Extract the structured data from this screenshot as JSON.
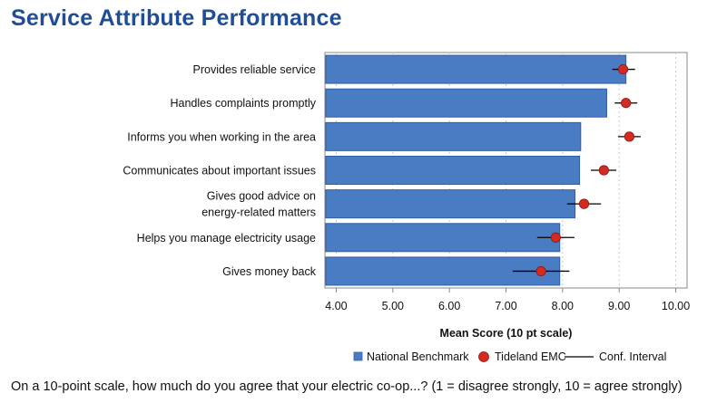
{
  "page": {
    "title": "Service Attribute Performance",
    "footer": "On a 10-point scale, how much do you agree that your electric co-op...? (1 = disagree strongly, 10 = agree strongly)"
  },
  "colors": {
    "title": "#1f4e96",
    "bar": "#4a7cc4",
    "bar_stroke": "#2f5ea8",
    "point": "#d42a1f",
    "point_stroke": "#8a1a12",
    "ci": "#000000",
    "grid": "#c8c8c8",
    "frame": "#888888"
  },
  "chart_data": {
    "type": "bar",
    "orientation": "horizontal",
    "xlabel": "Mean Score (10 pt scale)",
    "xlim": [
      3.8,
      10.2
    ],
    "xticks": [
      "4.00",
      "5.00",
      "6.00",
      "7.00",
      "8.00",
      "9.00",
      "10.00"
    ],
    "xtick_values": [
      4,
      5,
      6,
      7,
      8,
      9,
      10
    ],
    "grid": "vertical dotted",
    "legend_placement": "bottom",
    "legend": [
      {
        "label": "National Benchmark",
        "marker": "square"
      },
      {
        "label": "Tideland EMC",
        "marker": "circle"
      },
      {
        "label": "Conf. Interval",
        "marker": "line"
      }
    ],
    "categories": [
      [
        "Provides reliable service"
      ],
      [
        "Handles complaints promptly"
      ],
      [
        "Informs you when working in the area"
      ],
      [
        "Communicates about important issues"
      ],
      [
        "Gives good advice on",
        "energy-related matters"
      ],
      [
        "Helps you manage electricity usage"
      ],
      [
        "Gives money back"
      ]
    ],
    "series": [
      {
        "name": "National Benchmark",
        "values": [
          9.12,
          8.78,
          8.32,
          8.3,
          8.22,
          7.95,
          7.95
        ]
      },
      {
        "name": "Tideland EMC",
        "values": [
          9.07,
          9.12,
          9.18,
          8.73,
          8.38,
          7.88,
          7.62
        ],
        "ci_low": [
          8.88,
          8.92,
          8.98,
          8.5,
          8.08,
          7.55,
          7.12
        ],
        "ci_high": [
          9.28,
          9.32,
          9.38,
          8.95,
          8.68,
          8.21,
          8.12
        ]
      }
    ]
  }
}
